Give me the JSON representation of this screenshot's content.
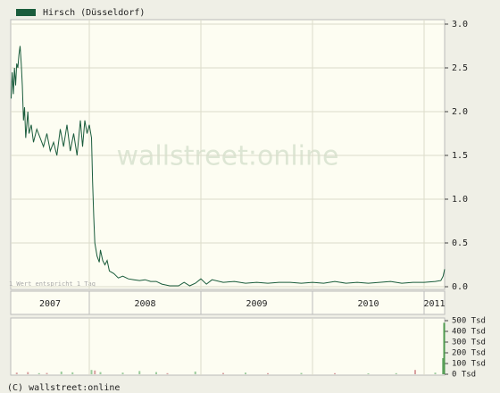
{
  "chart_data": {
    "type": "line",
    "series": [
      {
        "name": "Hirsch (Düsseldorf)",
        "color": "#1a5c3c",
        "x": [
          2007.3,
          2007.31,
          2007.32,
          2007.33,
          2007.34,
          2007.35,
          2007.36,
          2007.37,
          2007.38,
          2007.39,
          2007.4,
          2007.41,
          2007.42,
          2007.43,
          2007.44,
          2007.45,
          2007.46,
          2007.48,
          2007.5,
          2007.53,
          2007.56,
          2007.59,
          2007.62,
          2007.65,
          2007.68,
          2007.71,
          2007.74,
          2007.77,
          2007.8,
          2007.83,
          2007.86,
          2007.89,
          2007.92,
          2007.94,
          2007.96,
          2007.98,
          2008.0,
          2008.02,
          2008.03,
          2008.04,
          2008.05,
          2008.07,
          2008.09,
          2008.1,
          2008.12,
          2008.14,
          2008.16,
          2008.18,
          2008.22,
          2008.26,
          2008.3,
          2008.35,
          2008.4,
          2008.45,
          2008.5,
          2008.55,
          2008.6,
          2008.65,
          2008.72,
          2008.8,
          2008.85,
          2008.9,
          2008.95,
          2009.0,
          2009.05,
          2009.1,
          2009.2,
          2009.3,
          2009.4,
          2009.5,
          2009.6,
          2009.7,
          2009.8,
          2009.9,
          2010.0,
          2010.1,
          2010.2,
          2010.3,
          2010.4,
          2010.5,
          2010.6,
          2010.7,
          2010.8,
          2010.9,
          2011.0,
          2011.1,
          2011.15,
          2011.17,
          2011.184
        ],
        "values": [
          2.15,
          2.45,
          2.2,
          2.5,
          2.3,
          2.55,
          2.5,
          2.65,
          2.75,
          2.55,
          2.3,
          1.9,
          2.05,
          1.7,
          1.85,
          2.0,
          1.75,
          1.85,
          1.65,
          1.8,
          1.7,
          1.6,
          1.75,
          1.55,
          1.65,
          1.5,
          1.8,
          1.6,
          1.85,
          1.55,
          1.75,
          1.5,
          1.9,
          1.6,
          1.9,
          1.75,
          1.85,
          1.7,
          1.2,
          0.8,
          0.5,
          0.35,
          0.28,
          0.42,
          0.3,
          0.25,
          0.3,
          0.18,
          0.15,
          0.1,
          0.12,
          0.09,
          0.08,
          0.07,
          0.08,
          0.06,
          0.06,
          0.03,
          0.01,
          0.01,
          0.05,
          0.01,
          0.04,
          0.09,
          0.03,
          0.08,
          0.05,
          0.06,
          0.04,
          0.05,
          0.04,
          0.05,
          0.05,
          0.04,
          0.05,
          0.04,
          0.06,
          0.04,
          0.05,
          0.04,
          0.05,
          0.06,
          0.04,
          0.05,
          0.05,
          0.06,
          0.07,
          0.12,
          0.2
        ]
      }
    ],
    "xlim": [
      2007.296,
      2011.184
    ],
    "xticks": [
      2007,
      2008,
      2009,
      2010,
      2011
    ],
    "ylim": [
      0,
      3
    ],
    "yticks": [
      {
        "value": 0,
        "label": "0.0"
      },
      {
        "value": 0.5,
        "label": "0.5"
      },
      {
        "value": 1,
        "label": "1.0"
      },
      {
        "value": 1.5,
        "label": "1.5"
      },
      {
        "value": 2,
        "label": "2.0"
      },
      {
        "value": 2.5,
        "label": "2.5"
      },
      {
        "value": 3,
        "label": "3.0"
      }
    ],
    "grid": true,
    "watermark": "wallstreet:online",
    "note": "1 Wert entspricht 1 Tag",
    "volume": {
      "x": [
        2007.35,
        2007.45,
        2007.55,
        2007.62,
        2007.75,
        2007.85,
        2008.02,
        2008.05,
        2008.1,
        2008.3,
        2008.45,
        2008.6,
        2008.7,
        2008.95,
        2009.2,
        2009.4,
        2009.6,
        2009.9,
        2010.2,
        2010.5,
        2010.75,
        2010.92,
        2011.1,
        2011.17,
        2011.18
      ],
      "values": [
        15,
        20,
        10,
        12,
        25,
        18,
        40,
        35,
        20,
        15,
        30,
        20,
        10,
        25,
        12,
        15,
        10,
        12,
        10,
        8,
        10,
        40,
        15,
        150,
        480
      ],
      "colors": [
        "#d8a0a0",
        "#d8a0a0",
        "#9ccc9c",
        "#d8a0a0",
        "#9ccc9c",
        "#9ccc9c",
        "#9ccc9c",
        "#d8a0a0",
        "#9ccc9c",
        "#9ccc9c",
        "#9ccc9c",
        "#9ccc9c",
        "#d8a0a0",
        "#9ccc9c",
        "#d8a0a0",
        "#9ccc9c",
        "#d8a0a0",
        "#9ccc9c",
        "#d8a0a0",
        "#9ccc9c",
        "#9ccc9c",
        "#d8a0a0",
        "#9ccc9c",
        "#6aa86a",
        "#4f9a4f"
      ],
      "ylim": [
        0,
        500
      ],
      "yticks": [
        {
          "value": 0,
          "label": "0 Tsd"
        },
        {
          "value": 100,
          "label": "100 Tsd"
        },
        {
          "value": 200,
          "label": "200 Tsd"
        },
        {
          "value": 300,
          "label": "300 Tsd"
        },
        {
          "value": 400,
          "label": "400 Tsd"
        },
        {
          "value": 500,
          "label": "500 Tsd"
        }
      ]
    },
    "copyright": "(C) wallstreet:online"
  }
}
